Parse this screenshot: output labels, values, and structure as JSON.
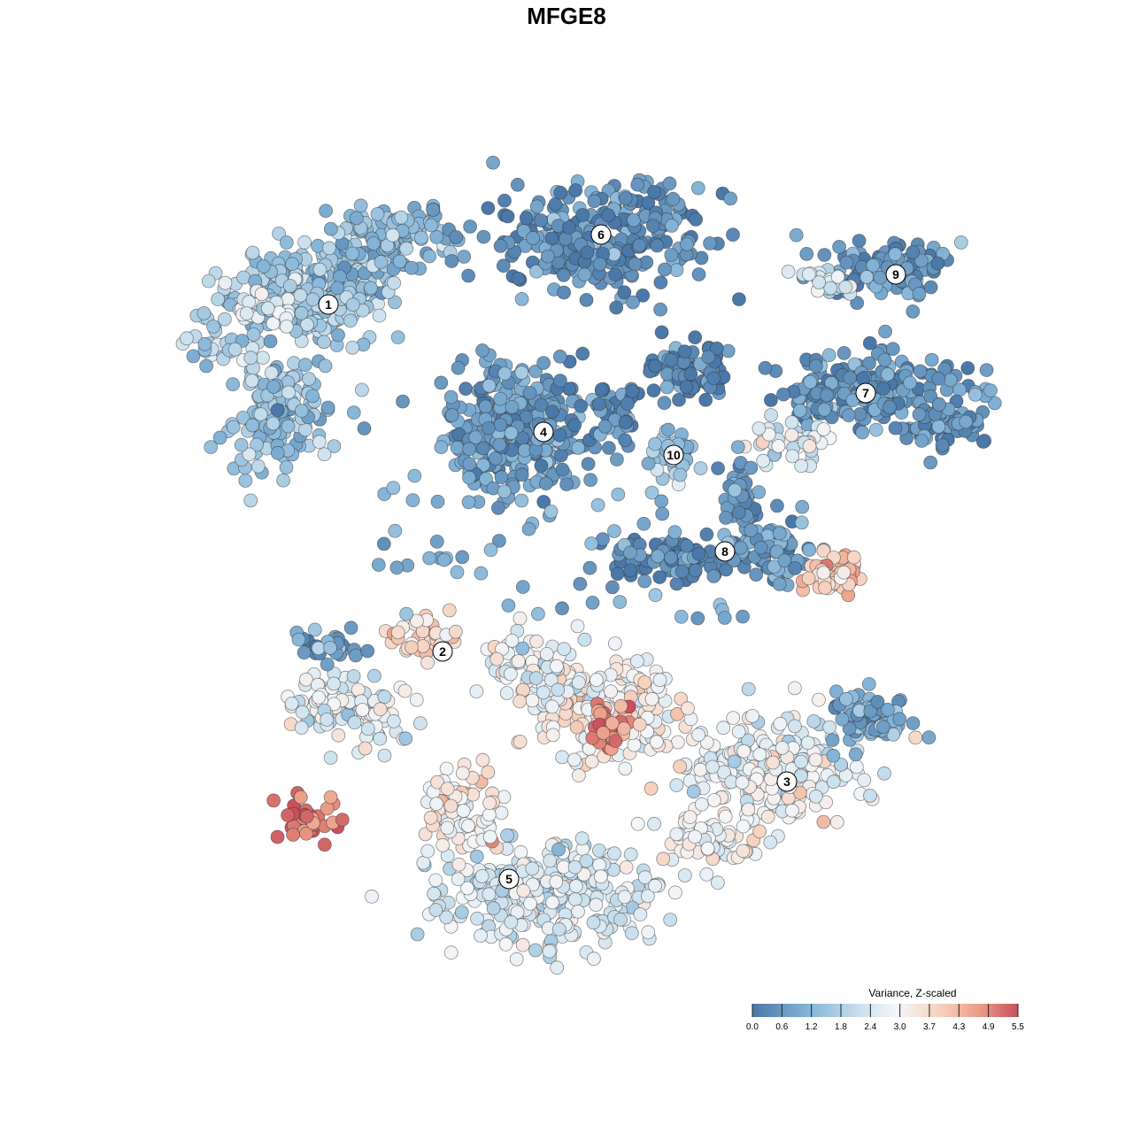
{
  "chart_data": {
    "type": "scatter",
    "title": "MFGE8",
    "xlabel": "",
    "ylabel": "",
    "grid": false,
    "legend_placement": "bottom-right",
    "legend": {
      "title": "Variance, Z-scaled",
      "ticks": [
        "0.0",
        "0.6",
        "1.2",
        "1.8",
        "2.4",
        "3.0",
        "3.7",
        "4.3",
        "4.9",
        "5.5"
      ],
      "range": [
        0.0,
        5.5
      ]
    },
    "colors": {
      "low": "#4a78a8",
      "mid_low": "#9ec6df",
      "mid": "#f4f6f8",
      "mid_high": "#f2b197",
      "high": "#c8505c"
    },
    "clusters": [
      {
        "label": "1",
        "mean_value": 1.6
      },
      {
        "label": "2",
        "mean_value": 2.9
      },
      {
        "label": "3",
        "mean_value": 2.7
      },
      {
        "label": "4",
        "mean_value": 0.7
      },
      {
        "label": "5",
        "mean_value": 2.6
      },
      {
        "label": "6",
        "mean_value": 0.5
      },
      {
        "label": "7",
        "mean_value": 0.6
      },
      {
        "label": "8",
        "mean_value": 0.4
      },
      {
        "label": "9",
        "mean_value": 0.7
      },
      {
        "label": "10",
        "mean_value": 1.2
      }
    ]
  }
}
